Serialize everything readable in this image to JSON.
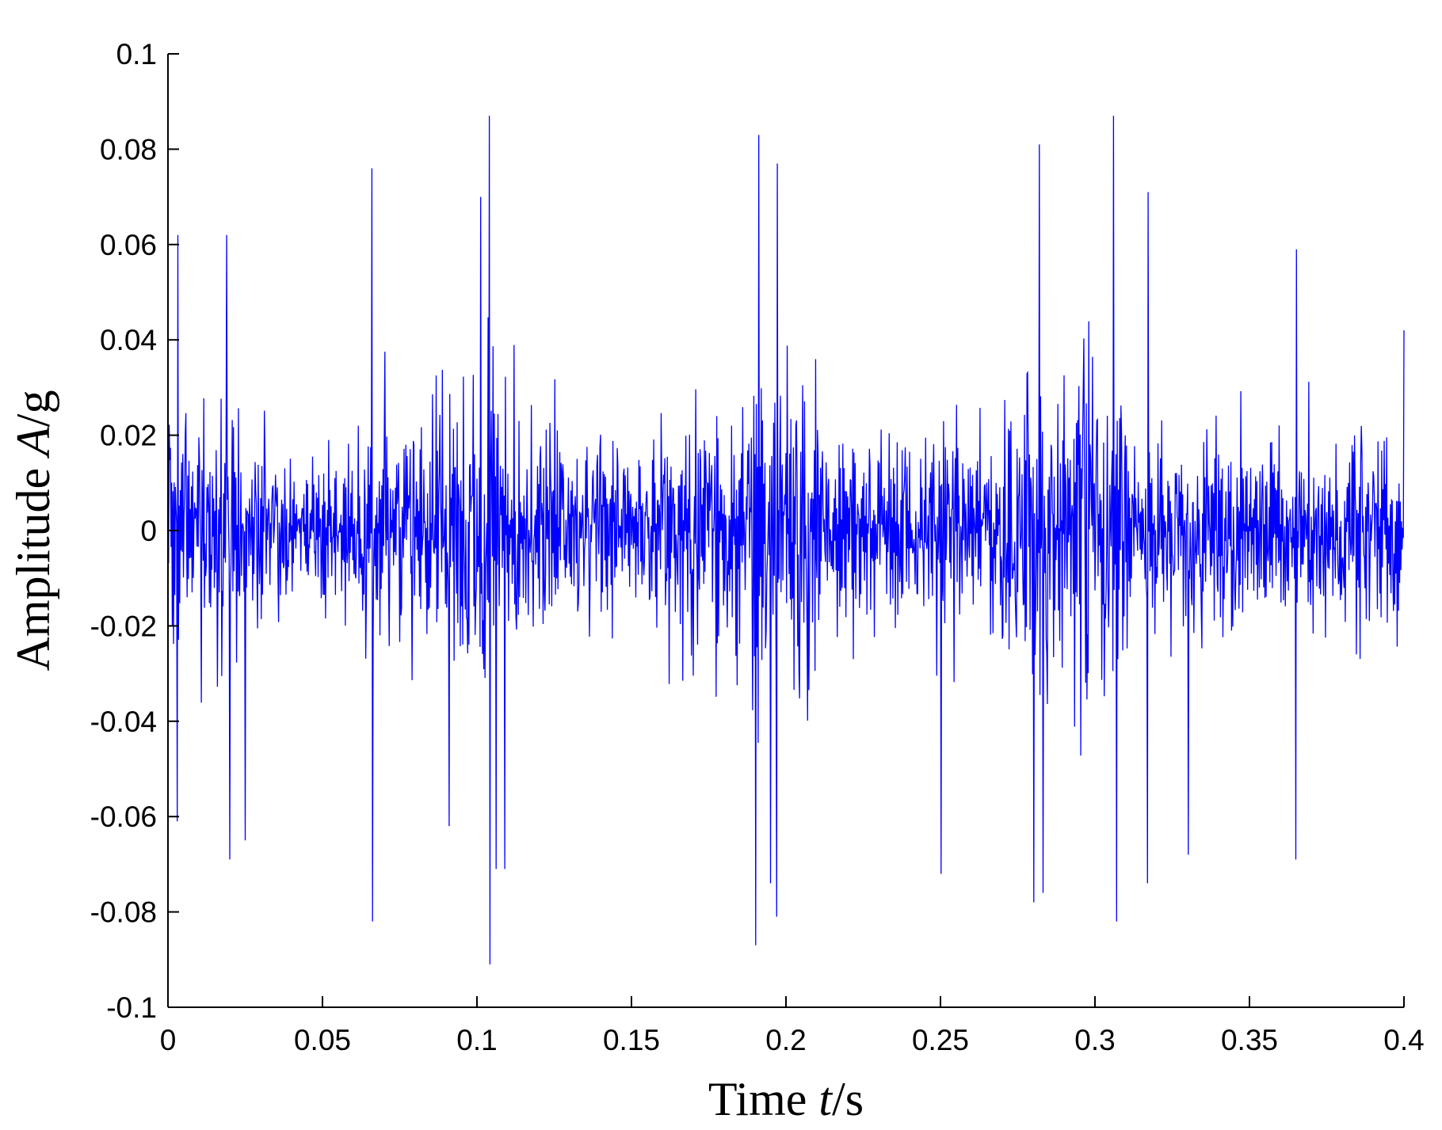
{
  "chart_data": {
    "type": "line",
    "title": "",
    "xlabel": {
      "prefix": "Time ",
      "var": "t",
      "unit": "/s"
    },
    "ylabel": {
      "prefix": "Amplitude ",
      "var": "A",
      "unit": "/g"
    },
    "xlim": [
      0,
      0.4
    ],
    "ylim": [
      -0.1,
      0.1
    ],
    "xticks": [
      {
        "value": 0,
        "label": "0"
      },
      {
        "value": 0.05,
        "label": "0.05"
      },
      {
        "value": 0.1,
        "label": "0.1"
      },
      {
        "value": 0.15,
        "label": "0.15"
      },
      {
        "value": 0.2,
        "label": "0.2"
      },
      {
        "value": 0.25,
        "label": "0.25"
      },
      {
        "value": 0.3,
        "label": "0.3"
      },
      {
        "value": 0.35,
        "label": "0.35"
      },
      {
        "value": 0.4,
        "label": "0.4"
      }
    ],
    "yticks": [
      {
        "value": 0.1,
        "label": "0.1"
      },
      {
        "value": 0.08,
        "label": "0.08"
      },
      {
        "value": 0.06,
        "label": "0.06"
      },
      {
        "value": 0.04,
        "label": "0.04"
      },
      {
        "value": 0.02,
        "label": "0.02"
      },
      {
        "value": 0,
        "label": "0"
      },
      {
        "value": -0.02,
        "label": "-0.02"
      },
      {
        "value": -0.04,
        "label": "-0.04"
      },
      {
        "value": -0.06,
        "label": "-0.06"
      },
      {
        "value": -0.08,
        "label": "-0.08"
      },
      {
        "value": -0.1,
        "label": "-0.1"
      }
    ],
    "grid": false,
    "legend": "none",
    "series": [
      {
        "color": "#0000ff",
        "envelope_t": [
          0,
          0.01,
          0.02,
          0.03,
          0.04,
          0.05,
          0.06,
          0.07,
          0.08,
          0.09,
          0.1,
          0.11,
          0.12,
          0.13,
          0.14,
          0.15,
          0.16,
          0.17,
          0.18,
          0.19,
          0.2,
          0.21,
          0.22,
          0.23,
          0.24,
          0.25,
          0.26,
          0.27,
          0.28,
          0.29,
          0.3,
          0.31,
          0.32,
          0.33,
          0.34,
          0.35,
          0.36,
          0.37,
          0.38,
          0.39,
          0.4
        ],
        "envelope_amp": [
          0.04,
          0.035,
          0.045,
          0.032,
          0.025,
          0.025,
          0.03,
          0.04,
          0.032,
          0.045,
          0.055,
          0.045,
          0.03,
          0.032,
          0.03,
          0.028,
          0.035,
          0.045,
          0.048,
          0.05,
          0.058,
          0.045,
          0.032,
          0.03,
          0.028,
          0.038,
          0.035,
          0.035,
          0.05,
          0.045,
          0.055,
          0.04,
          0.035,
          0.032,
          0.035,
          0.032,
          0.035,
          0.03,
          0.03,
          0.032,
          0.035
        ],
        "peaks": [
          {
            "t": 0.003,
            "a": 0.062
          },
          {
            "t": 0.003,
            "a": -0.061
          },
          {
            "t": 0.019,
            "a": 0.062
          },
          {
            "t": 0.02,
            "a": -0.069
          },
          {
            "t": 0.025,
            "a": -0.065
          },
          {
            "t": 0.066,
            "a": 0.076
          },
          {
            "t": 0.066,
            "a": -0.082
          },
          {
            "t": 0.091,
            "a": -0.062
          },
          {
            "t": 0.101,
            "a": 0.07
          },
          {
            "t": 0.104,
            "a": 0.087
          },
          {
            "t": 0.104,
            "a": -0.091
          },
          {
            "t": 0.106,
            "a": -0.071
          },
          {
            "t": 0.109,
            "a": -0.071
          },
          {
            "t": 0.19,
            "a": -0.087
          },
          {
            "t": 0.191,
            "a": 0.083
          },
          {
            "t": 0.195,
            "a": -0.074
          },
          {
            "t": 0.197,
            "a": -0.081
          },
          {
            "t": 0.197,
            "a": 0.077
          },
          {
            "t": 0.25,
            "a": -0.072
          },
          {
            "t": 0.28,
            "a": -0.078
          },
          {
            "t": 0.282,
            "a": 0.081
          },
          {
            "t": 0.283,
            "a": -0.076
          },
          {
            "t": 0.306,
            "a": 0.087
          },
          {
            "t": 0.307,
            "a": -0.082
          },
          {
            "t": 0.317,
            "a": 0.071
          },
          {
            "t": 0.317,
            "a": -0.074
          },
          {
            "t": 0.33,
            "a": -0.068
          },
          {
            "t": 0.365,
            "a": 0.059
          },
          {
            "t": 0.365,
            "a": -0.069
          }
        ],
        "sample_interval": 0.0002,
        "start": {
          "t": 0,
          "a": 0.026
        },
        "end": {
          "t": 0.4,
          "a": 0.042
        }
      }
    ]
  }
}
